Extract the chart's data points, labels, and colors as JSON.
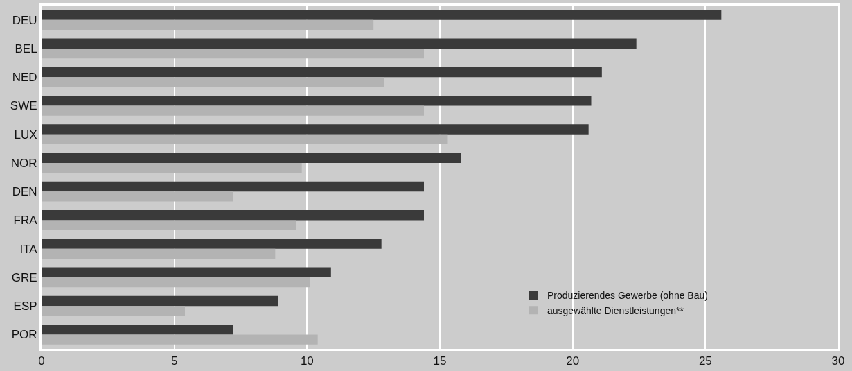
{
  "chart_data": {
    "type": "bar",
    "orientation": "horizontal",
    "categories": [
      "DEU",
      "BEL",
      "NED",
      "SWE",
      "LUX",
      "NOR",
      "DEN",
      "FRA",
      "ITA",
      "GRE",
      "ESP",
      "POR"
    ],
    "series": [
      {
        "name": "Produzierendes Gewerbe (ohne Bau)",
        "color": "#3a3a3a",
        "values": [
          25.6,
          22.4,
          21.1,
          20.7,
          20.6,
          15.8,
          14.4,
          14.4,
          12.8,
          10.9,
          8.9,
          7.2
        ]
      },
      {
        "name": "ausgewählte Dienstleistungen**",
        "color": "#b3b3b3",
        "values": [
          12.5,
          14.4,
          12.9,
          14.4,
          15.3,
          9.8,
          7.2,
          9.6,
          8.8,
          10.1,
          5.4,
          10.4
        ]
      }
    ],
    "xlim": [
      0,
      30
    ],
    "xticks": [
      0,
      5,
      10,
      15,
      20,
      25,
      30
    ],
    "grid": "x",
    "legend": "bottom right"
  }
}
